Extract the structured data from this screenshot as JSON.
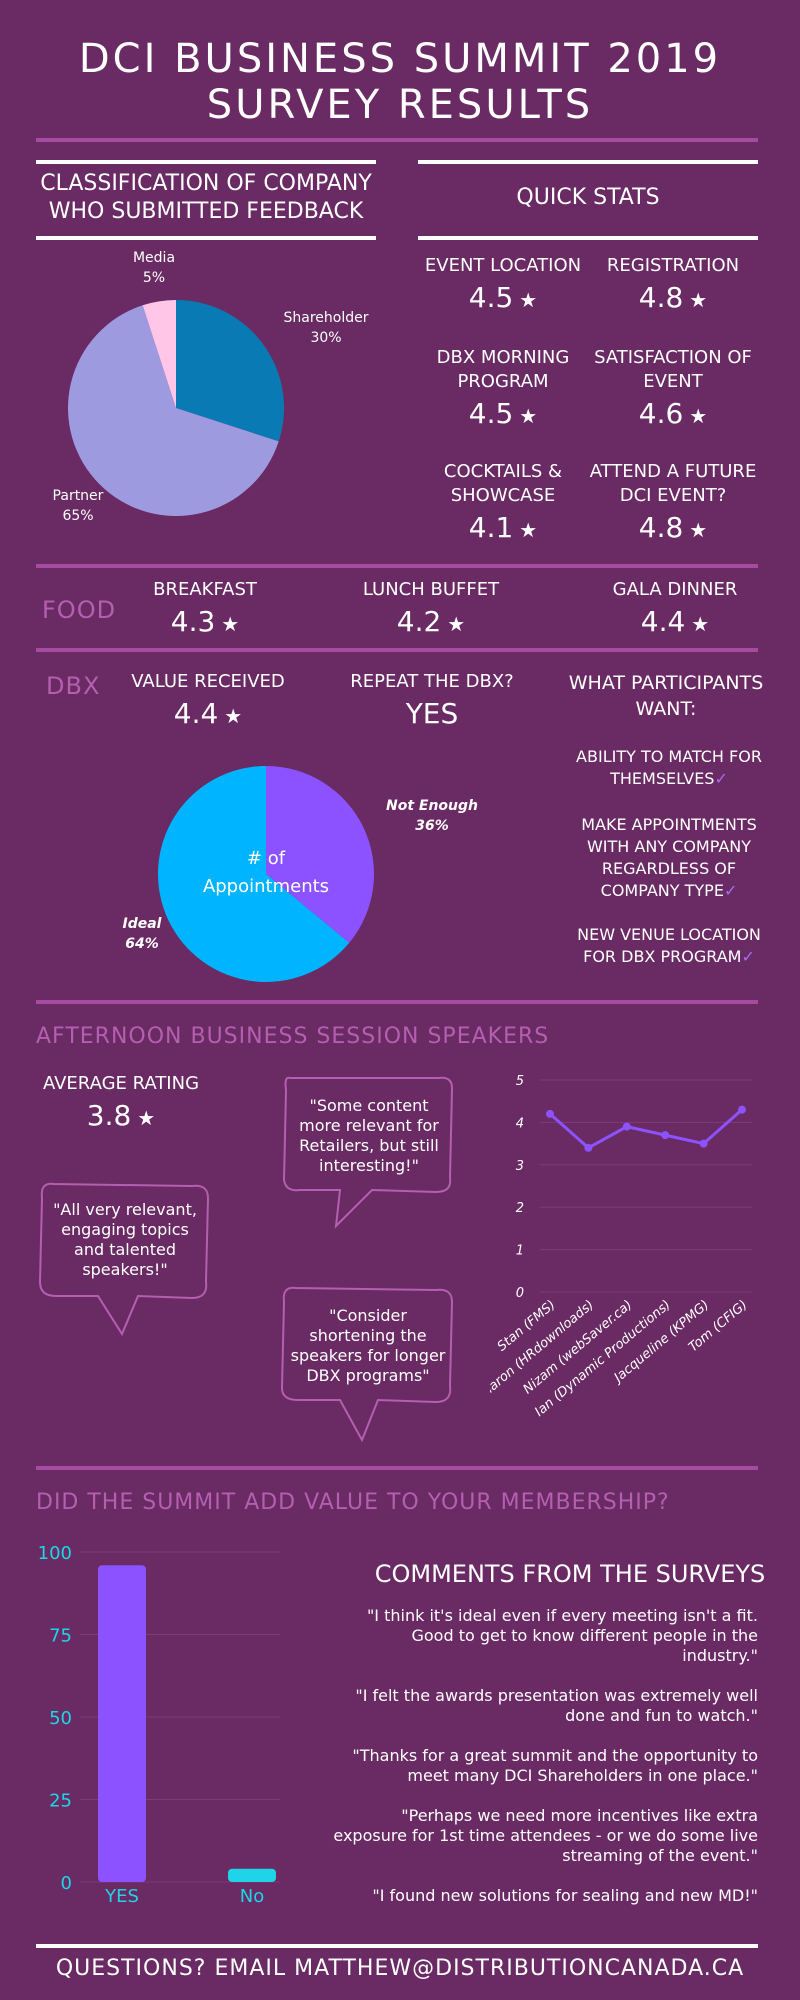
{
  "title_line1": "DCI BUSINESS SUMMIT 2019",
  "title_line2": "SURVEY RESULTS",
  "classification": {
    "heading_line1": "CLASSIFICATION OF COMPANY",
    "heading_line2": "WHO SUBMITTED FEEDBACK"
  },
  "quick_stats": {
    "heading": "QUICK STATS",
    "items": [
      {
        "label1": "EVENT LOCATION",
        "label2": "",
        "value": "4.5"
      },
      {
        "label1": "REGISTRATION",
        "label2": "",
        "value": "4.8"
      },
      {
        "label1": "DBX MORNING",
        "label2": "PROGRAM",
        "value": "4.5"
      },
      {
        "label1": "SATISFACTION OF",
        "label2": "EVENT",
        "value": "4.6"
      },
      {
        "label1": "COCKTAILS &",
        "label2": "SHOWCASE",
        "value": "4.1"
      },
      {
        "label1": "ATTEND A FUTURE",
        "label2": "DCI EVENT?",
        "value": "4.8"
      }
    ]
  },
  "star": "★",
  "food": {
    "label": "FOOD",
    "items": [
      {
        "label": "BREAKFAST",
        "value": "4.3"
      },
      {
        "label": "LUNCH BUFFET",
        "value": "4.2"
      },
      {
        "label": "GALA DINNER",
        "value": "4.4"
      }
    ]
  },
  "dbx": {
    "label": "DBX",
    "value_received_label": "VALUE RECEIVED",
    "value_received": "4.4",
    "repeat_label": "REPEAT THE DBX?",
    "repeat_value": "YES",
    "wants_heading_line1": "WHAT PARTICIPANTS",
    "wants_heading_line2": "WANT:",
    "wants": [
      {
        "lines": [
          "ABILITY TO MATCH FOR",
          "THEMSELVES"
        ]
      },
      {
        "lines": [
          "MAKE APPOINTMENTS",
          "WITH ANY COMPANY",
          "REGARDLESS OF",
          "COMPANY TYPE"
        ]
      },
      {
        "lines": [
          "NEW VENUE LOCATION",
          "FOR DBX PROGRAM"
        ]
      }
    ],
    "check": "✓"
  },
  "speakers": {
    "heading": "AFTERNOON BUSINESS SESSION SPEAKERS",
    "avg_label": "AVERAGE RATING",
    "avg_value": "3.8",
    "quotes": [
      {
        "lines": [
          "\"Some content",
          "more relevant for",
          "Retailers, but still",
          "interesting!\""
        ]
      },
      {
        "lines": [
          "\"All very relevant,",
          "engaging topics",
          "and talented",
          "speakers!\""
        ]
      },
      {
        "lines": [
          "\"Consider",
          "shortening the",
          "speakers for longer",
          "DBX programs\""
        ]
      }
    ]
  },
  "membership": {
    "heading": "DID THE SUMMIT ADD VALUE TO YOUR MEMBERSHIP?"
  },
  "comments": {
    "heading": "COMMENTS FROM THE SURVEYS",
    "items": [
      {
        "lines": [
          "\"I think it's ideal even if every meeting isn't a fit.",
          "Good to get to know different people in the",
          "industry.\""
        ]
      },
      {
        "lines": [
          "\"I felt the awards presentation was extremely well",
          "done and fun to watch.\""
        ]
      },
      {
        "lines": [
          "\"Thanks for a great summit and the opportunity to",
          "meet many DCI Shareholders in one place.\""
        ]
      },
      {
        "lines": [
          "\"Perhaps we need more incentives like extra",
          "exposure for 1st time attendees - or we do some live",
          "streaming of the event.\""
        ]
      },
      {
        "lines": [
          "\"I found new solutions for sealing and new MD!\""
        ]
      }
    ]
  },
  "footer": "QUESTIONS? EMAIL MATTHEW@DISTRIBUTIONCANADA.CA",
  "colors": {
    "background": "#6a2a63",
    "accent_line": "#a64ba0",
    "label_purple": "#b45fb0",
    "purple_bar": "#8c52ff",
    "cyan": "#1fd4e8",
    "blue": "#00b4ff"
  },
  "chart_data": [
    {
      "type": "pie",
      "labels": [
        "Shareholder",
        "Partner",
        "Media"
      ],
      "values": [
        30,
        65,
        5
      ],
      "value_labels": [
        "30%",
        "65%",
        "5%"
      ],
      "colors": [
        "#0a7ab4",
        "#9e9ae0",
        "#ffc6e8"
      ]
    },
    {
      "type": "pie",
      "center_label": [
        "# of",
        "Appointments"
      ],
      "labels": [
        "Not Enough",
        "Ideal"
      ],
      "values": [
        36,
        64
      ],
      "value_labels": [
        "36%",
        "64%"
      ],
      "colors": [
        "#8c52ff",
        "#00b4ff"
      ]
    },
    {
      "type": "line",
      "categories": [
        "Stan (FMS)",
        "Sharon (HRdownloads)",
        "Nizam (webSaver.ca)",
        "Ian (Dynamic Productions)",
        "Jacqueline (KPMG)",
        "Tom (CFIG)"
      ],
      "values": [
        4.2,
        3.4,
        3.9,
        3.7,
        3.5,
        4.3
      ],
      "ylim": [
        0,
        5
      ],
      "yticks": [
        "0",
        "1",
        "2",
        "3",
        "4",
        "5"
      ],
      "color": "#8c52ff"
    },
    {
      "type": "bar",
      "categories": [
        "YES",
        "No"
      ],
      "values": [
        96,
        4
      ],
      "ylim": [
        0,
        100
      ],
      "yticks": [
        "0",
        "25",
        "50",
        "75",
        "100"
      ],
      "colors": [
        "#8c52ff",
        "#1fd4e8"
      ]
    }
  ]
}
